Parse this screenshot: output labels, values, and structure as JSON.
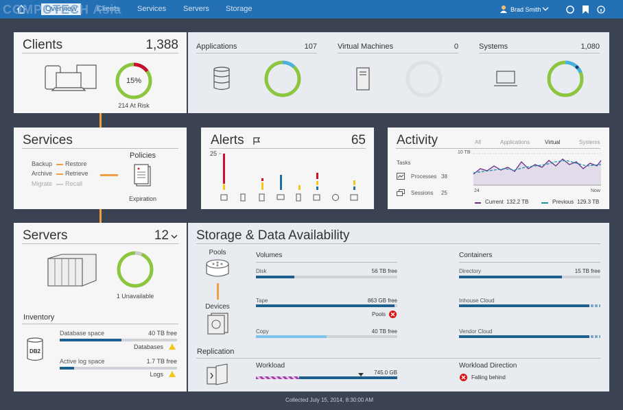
{
  "watermark": "COMPOTECH Asia",
  "nav": {
    "items": [
      "Overview",
      "Clients",
      "Services",
      "Servers",
      "Storage"
    ],
    "user": "Brad Smith"
  },
  "clients": {
    "title": "Clients",
    "count": "1,388",
    "gauge_percent": 15,
    "gauge_label": "15%",
    "at_risk": "214 At Risk"
  },
  "summary": [
    {
      "title": "Applications",
      "count": "107"
    },
    {
      "title": "Virtual Machines",
      "count": "0"
    },
    {
      "title": "Systems",
      "count": "1,080"
    }
  ],
  "services": {
    "title": "Services",
    "rows": [
      [
        "Backup",
        "Restore"
      ],
      [
        "Archive",
        "Retrieve"
      ],
      [
        "Migrate",
        "Recall"
      ]
    ],
    "policies": "Policies",
    "expiration": "Expiration"
  },
  "alerts": {
    "title": "Alerts",
    "count": "65",
    "ytick": "25"
  },
  "activity": {
    "title": "Activity",
    "tabs": [
      "All",
      "Applications",
      "Virtual",
      "Systems"
    ],
    "tasks": "Tasks",
    "rows": [
      {
        "label": "Processes",
        "value": "38"
      },
      {
        "label": "Sessions",
        "value": "25"
      }
    ],
    "ytick": "10 TB",
    "x_start": "24",
    "x_end": "Now",
    "legend": [
      {
        "name": "Current",
        "value": "132.2 TB"
      },
      {
        "name": "Previous",
        "value": "129.3 TB"
      }
    ]
  },
  "servers": {
    "title": "Servers",
    "count": "12",
    "unavailable": "1 Unavailable",
    "inventory": "Inventory",
    "db": "DB2",
    "items": [
      {
        "label": "Database space",
        "free": "40 TB free",
        "link": "Databases"
      },
      {
        "label": "Active log space",
        "free": "1.7 TB free",
        "link": "Logs"
      }
    ]
  },
  "storage": {
    "title": "Storage & Data Availability",
    "pools": "Pools",
    "devices": "Devices",
    "volumes": {
      "title": "Volumes",
      "items": [
        {
          "label": "Disk",
          "free": "56 TB free"
        },
        {
          "label": "Tape",
          "free": "863 GB free",
          "note": "Pools"
        },
        {
          "label": "Copy",
          "free": "40 TB free"
        }
      ]
    },
    "containers": {
      "title": "Containers",
      "items": [
        {
          "label": "Directory",
          "free": "15 TB free"
        },
        {
          "label": "Inhouse Cloud"
        },
        {
          "label": "Vendor Cloud"
        }
      ]
    },
    "replication": "Replication",
    "workload": {
      "title": "Workload",
      "value": "745.0 GB"
    },
    "direction": {
      "title": "Workload Direction",
      "status": "Falling behind"
    }
  },
  "footer": "Collected July 15, 2014, 8:30:00 AM"
}
